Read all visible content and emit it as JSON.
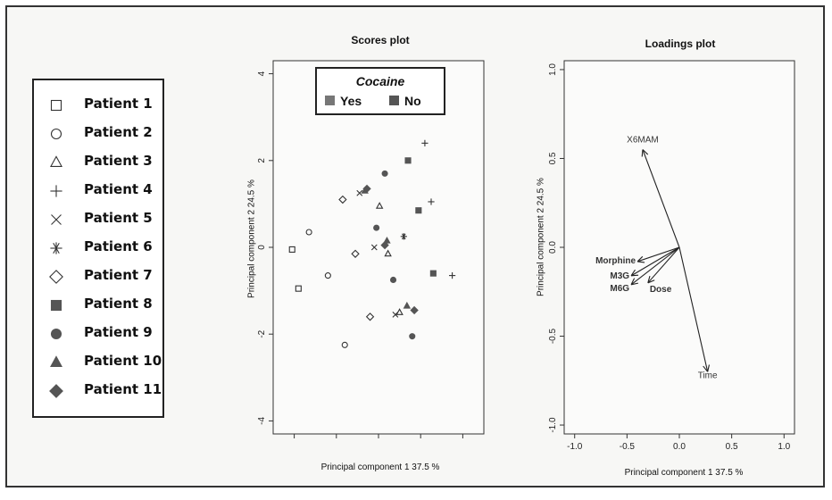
{
  "legend": {
    "items": [
      {
        "label": "Patient 1",
        "symbol": "square-open"
      },
      {
        "label": "Patient 2",
        "symbol": "circle-open"
      },
      {
        "label": "Patient 3",
        "symbol": "triangle-open"
      },
      {
        "label": "Patient 4",
        "symbol": "plus"
      },
      {
        "label": "Patient 5",
        "symbol": "cross"
      },
      {
        "label": "Patient 6",
        "symbol": "asterisk"
      },
      {
        "label": "Patient 7",
        "symbol": "diamond-open"
      },
      {
        "label": "Patient 8",
        "symbol": "square-filled"
      },
      {
        "label": "Patient 9",
        "symbol": "circle-filled"
      },
      {
        "label": "Patient 10",
        "symbol": "triangle-filled"
      },
      {
        "label": "Patient 11",
        "symbol": "diamond-filled"
      }
    ]
  },
  "chart_data": [
    {
      "type": "scatter",
      "title": "Scores plot",
      "xlabel": "Principal component 1  37.5 %",
      "ylabel": "Principal component 2  24.5 %",
      "xlim": [
        -5,
        5
      ],
      "ylim": [
        -4.3,
        4.3
      ],
      "xticks": [
        -4,
        -2,
        0,
        2,
        4
      ],
      "yticks": [
        -4,
        -2,
        0,
        2,
        4
      ],
      "inset_legend": {
        "title": "Cocaine",
        "entries": [
          {
            "label": "Yes",
            "color": "#777777"
          },
          {
            "label": "No",
            "color": "#555555"
          }
        ]
      },
      "points": [
        {
          "patient": "Patient 1",
          "symbol": "square-open",
          "x": -4.1,
          "y": -0.05
        },
        {
          "patient": "Patient 1",
          "symbol": "square-open",
          "x": -3.8,
          "y": -0.95
        },
        {
          "patient": "Patient 2",
          "symbol": "circle-open",
          "x": -3.3,
          "y": 0.35
        },
        {
          "patient": "Patient 2",
          "symbol": "circle-open",
          "x": -2.4,
          "y": -0.65
        },
        {
          "patient": "Patient 2",
          "symbol": "circle-open",
          "x": -1.6,
          "y": -2.25
        },
        {
          "patient": "Patient 3",
          "symbol": "triangle-open",
          "x": 0.05,
          "y": 0.95
        },
        {
          "patient": "Patient 3",
          "symbol": "triangle-open",
          "x": 0.45,
          "y": -0.15
        },
        {
          "patient": "Patient 3",
          "symbol": "triangle-open",
          "x": 1.0,
          "y": -1.5
        },
        {
          "patient": "Patient 4",
          "symbol": "plus",
          "x": 2.2,
          "y": 2.4
        },
        {
          "patient": "Patient 4",
          "symbol": "plus",
          "x": 2.5,
          "y": 1.05
        },
        {
          "patient": "Patient 4",
          "symbol": "plus",
          "x": 3.5,
          "y": -0.65
        },
        {
          "patient": "Patient 5",
          "symbol": "cross",
          "x": -0.9,
          "y": 1.25
        },
        {
          "patient": "Patient 5",
          "symbol": "cross",
          "x": -0.2,
          "y": 0.0
        },
        {
          "patient": "Patient 5",
          "symbol": "cross",
          "x": 0.8,
          "y": -1.55
        },
        {
          "patient": "Patient 6",
          "symbol": "asterisk",
          "x": 1.2,
          "y": 0.25
        },
        {
          "patient": "Patient 7",
          "symbol": "diamond-open",
          "x": -1.7,
          "y": 1.1
        },
        {
          "patient": "Patient 7",
          "symbol": "diamond-open",
          "x": -1.1,
          "y": -0.15
        },
        {
          "patient": "Patient 7",
          "symbol": "diamond-open",
          "x": -0.4,
          "y": -1.6
        },
        {
          "patient": "Patient 8",
          "symbol": "square-filled",
          "x": 1.4,
          "y": 2.0
        },
        {
          "patient": "Patient 8",
          "symbol": "square-filled",
          "x": 1.9,
          "y": 0.85
        },
        {
          "patient": "Patient 8",
          "symbol": "square-filled",
          "x": 2.6,
          "y": -0.6
        },
        {
          "patient": "Patient 9",
          "symbol": "circle-filled",
          "x": 0.3,
          "y": 1.7
        },
        {
          "patient": "Patient 9",
          "symbol": "circle-filled",
          "x": -0.1,
          "y": 0.45
        },
        {
          "patient": "Patient 9",
          "symbol": "circle-filled",
          "x": 0.7,
          "y": -0.75
        },
        {
          "patient": "Patient 9",
          "symbol": "circle-filled",
          "x": 1.6,
          "y": -2.05
        },
        {
          "patient": "Patient 10",
          "symbol": "triangle-filled",
          "x": -0.65,
          "y": 1.3
        },
        {
          "patient": "Patient 10",
          "symbol": "triangle-filled",
          "x": 0.4,
          "y": 0.15
        },
        {
          "patient": "Patient 10",
          "symbol": "triangle-filled",
          "x": 1.35,
          "y": -1.35
        },
        {
          "patient": "Patient 11",
          "symbol": "diamond-filled",
          "x": -0.55,
          "y": 1.35
        },
        {
          "patient": "Patient 11",
          "symbol": "diamond-filled",
          "x": 0.3,
          "y": 0.05
        },
        {
          "patient": "Patient 11",
          "symbol": "diamond-filled",
          "x": 1.7,
          "y": -1.45
        }
      ]
    },
    {
      "type": "biplot",
      "title": "Loadings plot",
      "xlabel": "Principal component 1  37.5 %",
      "ylabel": "Principal component 2  24.5 %",
      "xlim": [
        -1.1,
        1.1
      ],
      "ylim": [
        -1.05,
        1.05
      ],
      "xticks": [
        -1.0,
        -0.5,
        0.0,
        0.5,
        1.0
      ],
      "yticks": [
        -1.0,
        -0.5,
        0.0,
        0.5,
        1.0
      ],
      "tick_labels_x": [
        "-1.0",
        "-0.5",
        "0.0",
        "0.5",
        "1.0"
      ],
      "tick_labels_y": [
        "-1.0",
        "-0.5",
        "0.0",
        "0.5",
        "1.0"
      ],
      "vectors": [
        {
          "label": "X6MAM",
          "x": -0.35,
          "y": 0.55
        },
        {
          "label": "Morphine",
          "x": -0.4,
          "y": -0.08
        },
        {
          "label": "M3G",
          "x": -0.46,
          "y": -0.16
        },
        {
          "label": "M6G",
          "x": -0.46,
          "y": -0.21
        },
        {
          "label": "Dose",
          "x": -0.3,
          "y": -0.2
        },
        {
          "label": "Time",
          "x": 0.27,
          "y": -0.7
        }
      ]
    }
  ]
}
